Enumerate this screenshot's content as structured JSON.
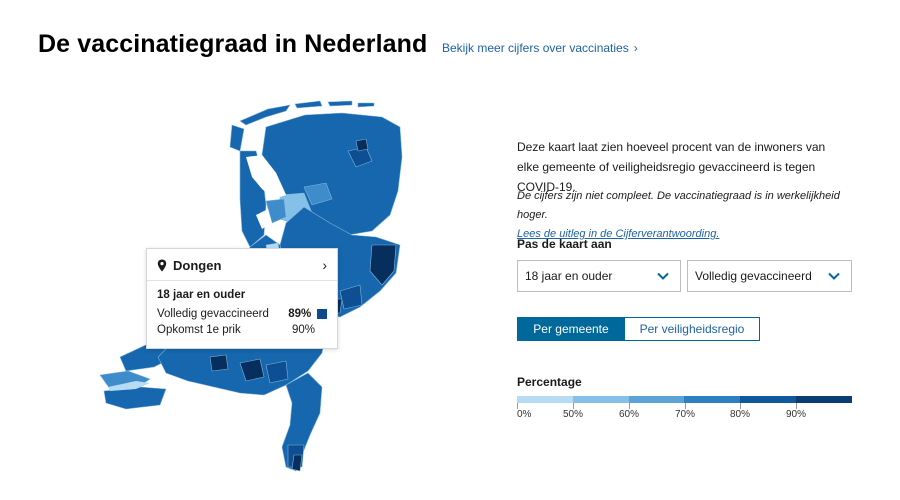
{
  "header": {
    "title": "De vaccinatiegraad in Nederland",
    "link_label": "Bekijk meer cijfers over vaccinaties"
  },
  "tooltip": {
    "place": "Dongen",
    "group": "18 jaar en ouder",
    "rows": [
      {
        "label": "Volledig gevaccineerd",
        "value": "89%"
      },
      {
        "label": "Opkomst 1e prik",
        "value": "90%"
      }
    ],
    "swatch_color": "#0b4a8c"
  },
  "panel": {
    "intro": "Deze kaart laat zien hoeveel procent van de inwoners van elke gemeente of veiligheidsregio gevaccineerd is tegen COVID-19.",
    "note": "De cijfers zijn niet compleet. De vaccinatiegraad is in werkelijkheid hoger.",
    "note_link": "Lees de uitleg in de Cijferverantwoording.",
    "adjust_label": "Pas de kaart aan",
    "age_select": "18 jaar en ouder",
    "status_select": "Volledig gevaccineerd",
    "toggle_active": "Per gemeente",
    "toggle_inactive": "Per veiligheidsregio"
  },
  "legend": {
    "title": "Percentage",
    "labels": [
      "0%",
      "50%",
      "60%",
      "70%",
      "80%",
      "90%"
    ],
    "colors": [
      "#b6dcf3",
      "#84c0e7",
      "#5ba3d6",
      "#2b7fc2",
      "#10589c",
      "#0a3d72"
    ]
  },
  "map": {
    "colors": {
      "lightest": "#b6dcf3",
      "light": "#84c0e7",
      "mid": "#3f8ccb",
      "main": "#1667ae",
      "dark": "#0d4f92",
      "darkest": "#072f5d",
      "water": "#ffffff",
      "border": "#6fa8d8"
    }
  }
}
